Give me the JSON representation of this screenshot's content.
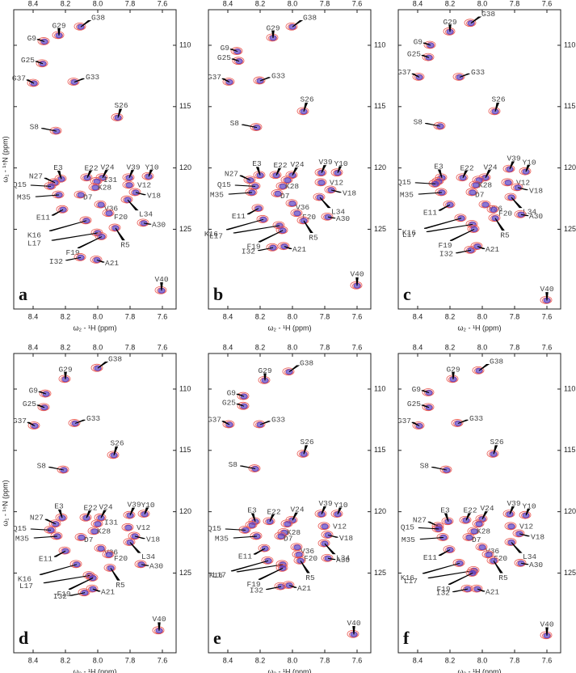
{
  "chart_data": [
    {
      "type": "scatter",
      "panel_label": "a",
      "xlabel": "ω₂ - ¹H (ppm)",
      "ylabel": "ω₁ - ¹⁵N (ppm)",
      "xlim": [
        8.52,
        7.515
      ],
      "ylim": [
        107.1,
        131.5
      ],
      "xticks": [
        8.4,
        8.2,
        {
          "value": 8,
          "label": "8.0"
        },
        7.8,
        7.6
      ],
      "yticks": [
        110,
        115,
        120,
        125
      ],
      "colors": [
        "#e8544e",
        "#5a3fc0"
      ],
      "point_labels": [
        "G38",
        "G29",
        "G9",
        "G25",
        "G37",
        "G33",
        "S26",
        "S8",
        "E3",
        "E22",
        "N27",
        "Q15",
        "Y10",
        "V39",
        "V24",
        "I31",
        "K28",
        "V12",
        "V18",
        "M35",
        "D7",
        "L34",
        "V36",
        "E11",
        "F20",
        "A30",
        "K16",
        "L17",
        "F19",
        "R5",
        "I32",
        "A21",
        "V40"
      ],
      "x": [
        8.105,
        8.24,
        8.33,
        8.34,
        8.395,
        8.145,
        7.875,
        8.255,
        8.225,
        8.065,
        8.265,
        8.29,
        7.685,
        7.805,
        7.97,
        8.005,
        8.015,
        7.805,
        7.765,
        8.24,
        8.105,
        7.815,
        7.98,
        8.215,
        7.93,
        7.715,
        8.07,
        8.0,
        7.975,
        7.89,
        8.105,
        8.005,
        7.605
      ],
      "values": [
        108.5,
        109.2,
        109.7,
        111.5,
        113.1,
        113.0,
        115.9,
        117.0,
        120.9,
        120.8,
        121.2,
        121.5,
        120.7,
        120.8,
        120.8,
        121.1,
        121.6,
        121.4,
        122.0,
        122.2,
        122.2,
        122.6,
        123.0,
        123.4,
        123.7,
        124.5,
        124.3,
        125.3,
        125.6,
        124.9,
        127.3,
        127.5,
        130.0
      ]
    },
    {
      "type": "scatter",
      "panel_label": "b",
      "xlabel": "ω₂ - ¹H (ppm)",
      "xlim": [
        8.52,
        7.515
      ],
      "ylim": [
        107.1,
        131.5
      ],
      "xticks": [
        8.4,
        8.2,
        {
          "value": 8,
          "label": "8.0"
        },
        7.8,
        7.6
      ],
      "yticks": [
        110,
        115,
        120,
        125
      ],
      "colors": [
        "#e8544e",
        "#5a3fc0"
      ],
      "point_labels": [
        "G38",
        "G29",
        "G9",
        "G25",
        "G37",
        "G33",
        "S26",
        "S8",
        "E3",
        "E22",
        "N27",
        "Q15",
        "Y10",
        "V39",
        "V24",
        null,
        "K28",
        "V12",
        "V18",
        "M35",
        "D7",
        "L34",
        "V36",
        "E11",
        "F20",
        "A30",
        "K16",
        "L17",
        "F19",
        "R5",
        "I32",
        "A21",
        "V40"
      ],
      "x": [
        8.0,
        8.12,
        8.34,
        8.33,
        8.39,
        8.2,
        7.93,
        8.22,
        8.2,
        8.1,
        8.26,
        8.23,
        7.72,
        7.82,
        8.0,
        8.03,
        8.06,
        7.82,
        7.76,
        8.25,
        8.09,
        7.83,
        8.0,
        8.21,
        7.97,
        7.78,
        8.18,
        8.08,
        8.06,
        7.93,
        8.12,
        8.05,
        7.6
      ],
      "values": [
        108.5,
        109.4,
        110.5,
        111.3,
        113.0,
        112.9,
        115.4,
        116.7,
        120.6,
        120.6,
        121.0,
        121.5,
        120.4,
        120.4,
        120.6,
        121.0,
        121.5,
        121.2,
        121.8,
        122.0,
        122.1,
        122.4,
        122.9,
        123.3,
        123.7,
        124.0,
        124.2,
        124.7,
        125.1,
        124.3,
        126.5,
        126.4,
        129.6
      ]
    },
    {
      "type": "scatter",
      "panel_label": "c",
      "xlabel": "ω₂ - ¹H (ppm)",
      "xlim": [
        8.52,
        7.515
      ],
      "ylim": [
        107.1,
        131.5
      ],
      "xticks": [
        8.4,
        8.2,
        {
          "value": 8,
          "label": "8.0"
        },
        7.8,
        7.6
      ],
      "yticks": [
        110,
        115,
        120,
        125
      ],
      "colors": [
        "#e8544e",
        "#5a3fc0"
      ],
      "point_labels": [
        "G38",
        "G29",
        "G9",
        "G25",
        "G37",
        "G33",
        "S26",
        "S8",
        "E3",
        "E22",
        null,
        "Q15",
        "Y10",
        "V39",
        "V24",
        null,
        "K28",
        "V12",
        "V18",
        "M35",
        "D7",
        "L34",
        "V36",
        "E11",
        "F20",
        "A30",
        "K16",
        "L17",
        "F19",
        "R5",
        "I32",
        "A21",
        "V40"
      ],
      "x": [
        8.07,
        8.2,
        8.32,
        8.33,
        8.39,
        8.14,
        7.92,
        8.26,
        8.25,
        8.12,
        8.27,
        8.29,
        7.73,
        7.83,
        7.98,
        8.02,
        8.04,
        7.84,
        7.78,
        8.25,
        8.06,
        7.82,
        7.98,
        8.2,
        7.93,
        7.76,
        8.13,
        8.06,
        8.05,
        7.92,
        8.07,
        8.03,
        7.6
      ],
      "values": [
        108.2,
        108.9,
        110.0,
        111.0,
        112.6,
        112.6,
        115.4,
        116.6,
        120.8,
        120.8,
        121.1,
        121.3,
        120.3,
        120.1,
        120.8,
        121.0,
        121.4,
        121.2,
        121.6,
        122.0,
        122.0,
        122.4,
        123.0,
        123.0,
        123.4,
        123.8,
        124.1,
        124.6,
        125.0,
        124.1,
        126.7,
        126.4,
        130.8
      ]
    },
    {
      "type": "scatter",
      "panel_label": "d",
      "xlabel": "ω₂ - ¹H (ppm)",
      "ylabel": "ω₁ - ¹⁵N (ppm)",
      "xlim": [
        8.52,
        7.515
      ],
      "ylim": [
        107.1,
        131.5
      ],
      "xticks": [
        8.4,
        8.2,
        {
          "value": 8,
          "label": "8.0"
        },
        7.8,
        7.6
      ],
      "yticks": [
        110,
        115,
        120,
        125
      ],
      "colors": [
        "#e8544e",
        "#5a3fc0"
      ],
      "point_labels": [
        "G38",
        "G29",
        "G9",
        "G25",
        "G37",
        "G33",
        "S26",
        "S8",
        "E3",
        "E22",
        "N27",
        "Q15",
        "Y10",
        "V39",
        "V24",
        "I31",
        "K28",
        "V12",
        "V18",
        "M35",
        "D7",
        "L34",
        "V36",
        "E11",
        "F20",
        "A30",
        "K16",
        "L17",
        "F19",
        "R5",
        "I32",
        "A21",
        "V40"
      ],
      "x": [
        8.0,
        8.2,
        8.32,
        8.33,
        8.39,
        8.14,
        7.9,
        8.21,
        8.22,
        8.07,
        8.26,
        8.29,
        7.71,
        7.8,
        7.98,
        8.0,
        8.02,
        7.81,
        7.77,
        8.25,
        8.1,
        7.8,
        7.98,
        8.2,
        7.93,
        7.73,
        8.13,
        8.05,
        8.03,
        7.92,
        8.08,
        8.03,
        7.62
      ],
      "values": [
        108.3,
        109.2,
        110.4,
        111.5,
        113.0,
        112.8,
        115.4,
        116.6,
        120.5,
        120.5,
        121.0,
        121.5,
        120.2,
        120.3,
        120.5,
        121.0,
        121.6,
        121.3,
        122.0,
        122.0,
        122.1,
        122.5,
        123.0,
        123.2,
        123.5,
        124.3,
        124.3,
        125.2,
        125.4,
        124.6,
        126.6,
        126.3,
        129.7
      ]
    },
    {
      "type": "scatter",
      "panel_label": "e",
      "xlabel": "ω₂ - ¹H (ppm)",
      "xlim": [
        8.52,
        7.515
      ],
      "ylim": [
        107.1,
        131.5
      ],
      "xticks": [
        8.4,
        8.2,
        {
          "value": 8,
          "label": "8.0"
        },
        7.8,
        7.6
      ],
      "yticks": [
        110,
        115,
        120,
        125
      ],
      "colors": [
        "#e8544e",
        "#5a3fc0"
      ],
      "point_labels": [
        "G38",
        "G29",
        "G9",
        "G25",
        "G37",
        "G33",
        "S26",
        "S8",
        "E3",
        "E22",
        null,
        "Q15",
        "Y10",
        "V39",
        "V24",
        null,
        "K28",
        "V12",
        "V18",
        "M35",
        "D7",
        "L34",
        "V36",
        "E11",
        "F20",
        "A30",
        "K16",
        "L17",
        "F19",
        "R5",
        "I32",
        "A21",
        "V40"
      ],
      "x": [
        8.02,
        8.17,
        8.3,
        8.3,
        8.39,
        8.2,
        7.93,
        8.23,
        8.23,
        8.14,
        8.25,
        8.29,
        7.72,
        7.82,
        8.0,
        8.03,
        8.05,
        7.8,
        7.78,
        8.22,
        8.07,
        7.8,
        7.97,
        8.17,
        7.96,
        7.78,
        8.15,
        8.06,
        8.06,
        7.95,
        8.07,
        8.02,
        7.62
      ],
      "values": [
        108.6,
        109.3,
        110.6,
        111.4,
        112.9,
        112.9,
        115.3,
        116.5,
        120.8,
        120.8,
        121.1,
        121.5,
        120.2,
        120.2,
        120.7,
        121.0,
        121.7,
        121.2,
        121.9,
        122.0,
        122.0,
        122.6,
        122.9,
        123.0,
        123.5,
        123.8,
        124.0,
        124.3,
        124.6,
        124.0,
        126.1,
        126.0,
        130.0
      ]
    },
    {
      "type": "scatter",
      "panel_label": "f",
      "xlabel": "ω₂ - ¹H (ppm)",
      "xlim": [
        8.52,
        7.515
      ],
      "ylim": [
        107.1,
        131.5
      ],
      "xticks": [
        8.4,
        8.2,
        {
          "value": 8,
          "label": "8.0"
        },
        7.8,
        7.6
      ],
      "yticks": [
        110,
        115,
        120,
        125
      ],
      "colors": [
        "#e8544e",
        "#5a3fc0"
      ],
      "point_labels": [
        "G38",
        "G29",
        "G9",
        "G25",
        "G37",
        "G33",
        "S26",
        "S8",
        "E3",
        "E22",
        "N27",
        "Q15",
        "Y10",
        "V39",
        "V24",
        null,
        "K28",
        "V12",
        "V18",
        "M35",
        "D7",
        "L34",
        "V36",
        "E11",
        "F20",
        "A30",
        "K16",
        "L17",
        "F19",
        "R5",
        "I32",
        "A21",
        "V40"
      ],
      "x": [
        8.02,
        8.18,
        8.33,
        8.33,
        8.39,
        8.15,
        7.93,
        8.22,
        8.21,
        8.1,
        8.27,
        8.27,
        7.73,
        7.83,
        8.0,
        8.02,
        8.05,
        7.82,
        7.77,
        8.24,
        8.08,
        7.82,
        8.0,
        8.2,
        7.96,
        7.76,
        8.14,
        8.05,
        8.06,
        7.93,
        8.09,
        8.03,
        7.6
      ],
      "values": [
        108.5,
        109.2,
        110.3,
        111.5,
        113.0,
        112.8,
        115.3,
        116.6,
        120.8,
        120.7,
        121.2,
        121.4,
        120.3,
        120.2,
        120.6,
        121.0,
        121.6,
        121.2,
        121.8,
        122.1,
        122.1,
        122.5,
        122.9,
        123.1,
        123.5,
        124.2,
        124.2,
        124.8,
        125.0,
        124.0,
        126.3,
        126.3,
        130.1
      ]
    }
  ]
}
